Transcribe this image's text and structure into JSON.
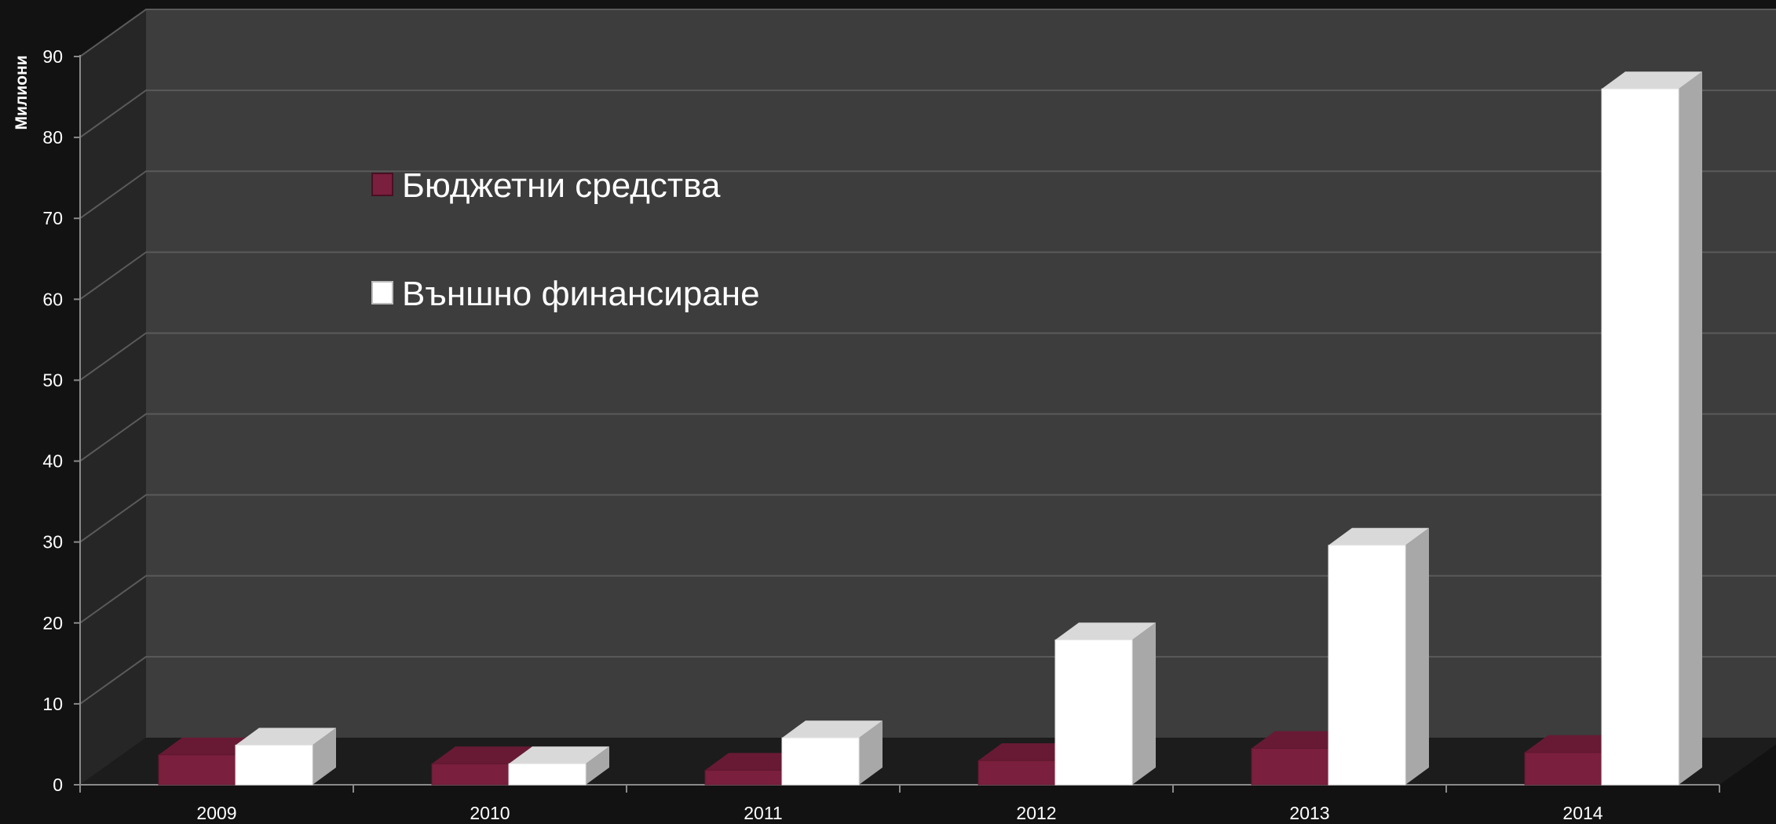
{
  "chart_data": {
    "type": "bar",
    "title": "",
    "xlabel": "",
    "ylabel": "Милиони",
    "ylim": [
      0,
      90
    ],
    "yticks": [
      0,
      10,
      20,
      30,
      40,
      50,
      60,
      70,
      80,
      90
    ],
    "categories": [
      "2009",
      "2010",
      "2011",
      "2012",
      "2013",
      "2014"
    ],
    "series": [
      {
        "name": "Бюджетни средства",
        "color": "#7a1f3d",
        "values": [
          3.7,
          2.6,
          1.8,
          3.0,
          4.5,
          4.0
        ]
      },
      {
        "name": "Външно финансиране",
        "color": "#ffffff",
        "values": [
          4.9,
          2.6,
          5.8,
          17.9,
          29.6,
          86.0
        ]
      }
    ],
    "grid": true,
    "legend_position": "top-left",
    "style": "3d-column",
    "background_color": "#121212",
    "wall_color": "#3d3d3d",
    "gridline_color": "#5a5a5a"
  }
}
